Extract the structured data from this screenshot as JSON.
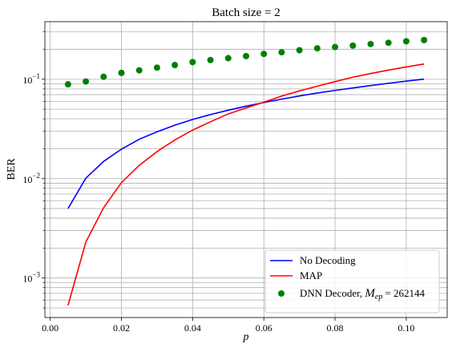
{
  "chart_data": {
    "type": "line",
    "title": "Batch size = 2",
    "xlabel": "p",
    "ylabel": "BER",
    "xlim": [
      -0.0015,
      0.1115
    ],
    "ylim": [
      0.0004,
      0.38
    ],
    "yscale": "log",
    "grid": true,
    "legend_position": "bottom-right",
    "x_ticks": [
      0.0,
      0.02,
      0.04,
      0.06,
      0.08,
      0.1
    ],
    "x_tick_labels": [
      "0.00",
      "0.02",
      "0.04",
      "0.06",
      "0.08",
      "0.10"
    ],
    "y_ticks": [
      0.001,
      0.01,
      0.1
    ],
    "y_tick_labels": [
      {
        "base": "10",
        "exp": "−3"
      },
      {
        "base": "10",
        "exp": "−2"
      },
      {
        "base": "10",
        "exp": "−1"
      }
    ],
    "x": [
      0.005,
      0.01,
      0.015,
      0.02,
      0.025,
      0.03,
      0.035,
      0.04,
      0.045,
      0.05,
      0.055,
      0.06,
      0.065,
      0.07,
      0.075,
      0.08,
      0.085,
      0.09,
      0.095,
      0.1,
      0.105
    ],
    "series": [
      {
        "name": "No Decoding",
        "kind": "line",
        "color": "#0000ff",
        "values": [
          0.005,
          0.0101,
          0.0149,
          0.0198,
          0.0249,
          0.0296,
          0.0345,
          0.0394,
          0.0441,
          0.0488,
          0.0536,
          0.0583,
          0.0631,
          0.0679,
          0.0726,
          0.0772,
          0.0818,
          0.0865,
          0.0911,
          0.0958,
          0.1003
        ]
      },
      {
        "name": "MAP",
        "kind": "line",
        "color": "#ff0000",
        "values": [
          0.00053,
          0.0023,
          0.0051,
          0.0091,
          0.0136,
          0.0187,
          0.0245,
          0.0308,
          0.0373,
          0.0448,
          0.0514,
          0.0588,
          0.0676,
          0.0764,
          0.0851,
          0.0946,
          0.1049,
          0.1142,
          0.1236,
          0.1331,
          0.1425
        ]
      },
      {
        "name": "DNN Decoder",
        "name_math": "M",
        "name_math_sub": "ep",
        "name_value": "= 262144",
        "kind": "scatter",
        "color": "#008000",
        "values": [
          0.089,
          0.095,
          0.106,
          0.116,
          0.123,
          0.131,
          0.139,
          0.149,
          0.156,
          0.163,
          0.171,
          0.18,
          0.187,
          0.196,
          0.205,
          0.211,
          0.218,
          0.226,
          0.233,
          0.241,
          0.248
        ]
      }
    ]
  }
}
